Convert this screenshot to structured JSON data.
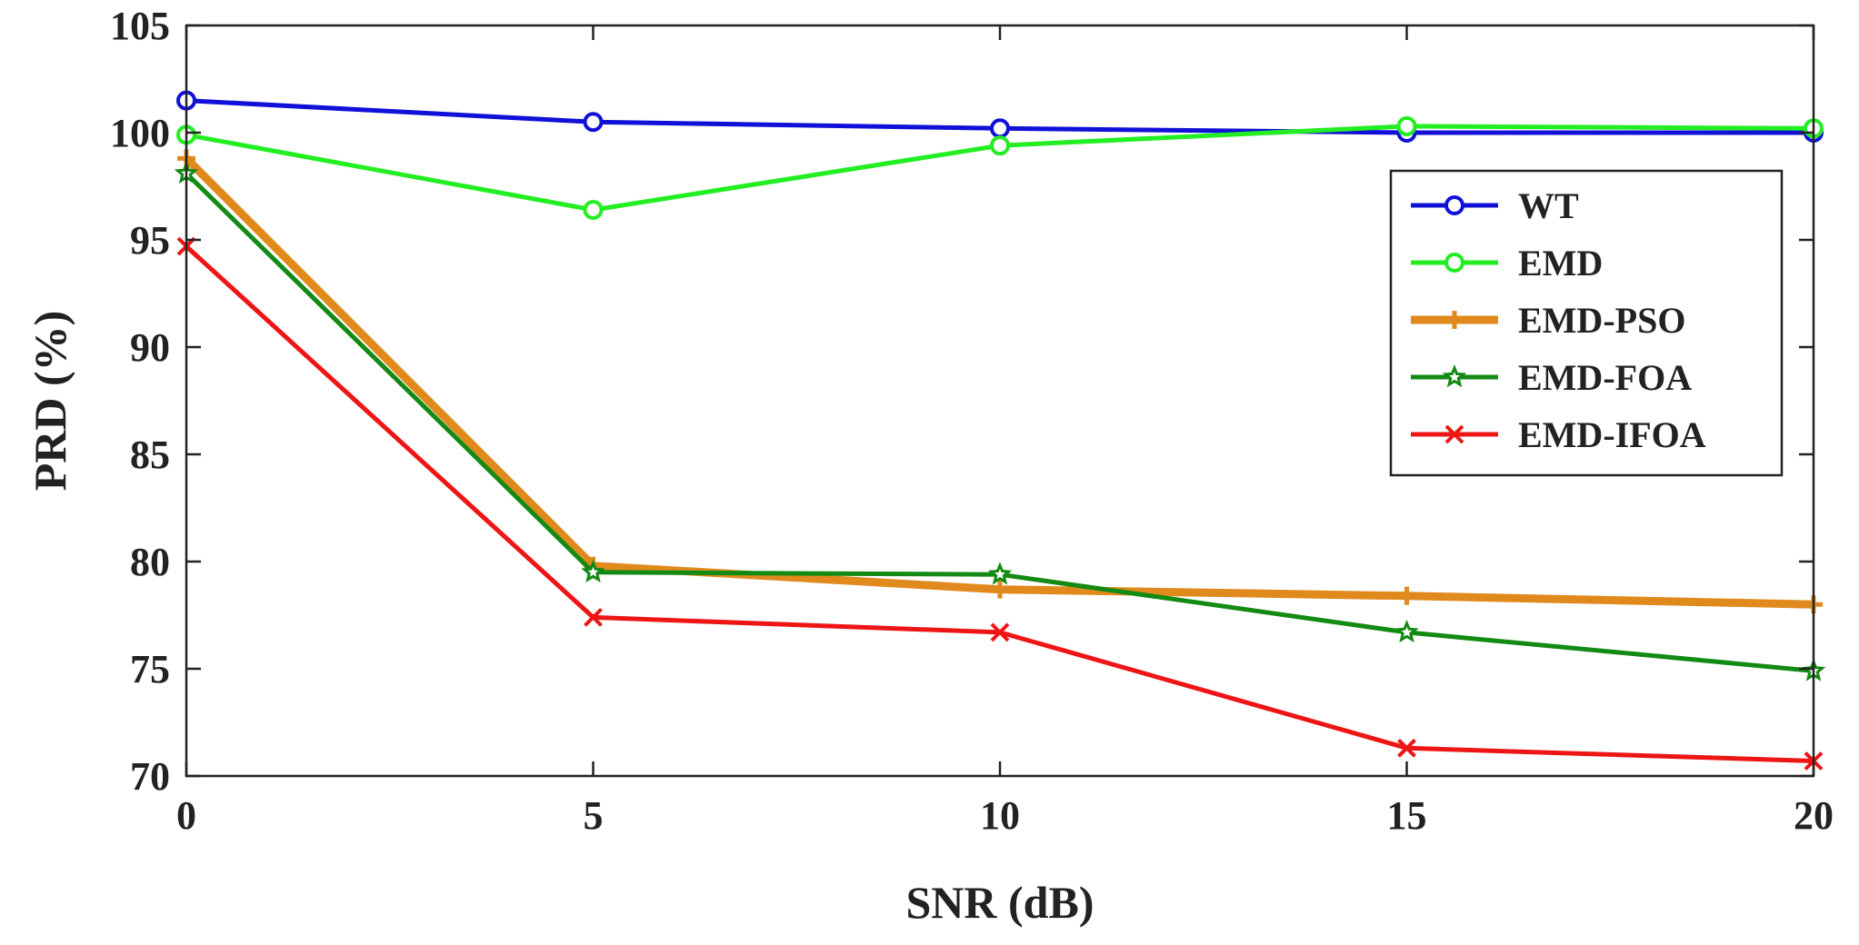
{
  "chart_data": {
    "type": "line",
    "xlabel": "SNR (dB)",
    "ylabel": "PRD (%)",
    "x": [
      0,
      5,
      10,
      15,
      20
    ],
    "xlim": [
      0,
      20
    ],
    "ylim": [
      70,
      105
    ],
    "xticks": [
      0,
      5,
      10,
      15,
      20
    ],
    "yticks": [
      70,
      75,
      80,
      85,
      90,
      95,
      100,
      105
    ],
    "grid": false,
    "legend_position": "top-right",
    "series": [
      {
        "name": "WT",
        "color": "#1010d8",
        "marker": "circle",
        "values": [
          101.5,
          100.5,
          100.2,
          100.0,
          100.0
        ]
      },
      {
        "name": "EMD",
        "color": "#22ee22",
        "marker": "circle",
        "values": [
          99.9,
          96.4,
          99.4,
          100.3,
          100.2
        ]
      },
      {
        "name": "EMD-PSO",
        "color": "#e08a1e",
        "marker": "plus",
        "values": [
          98.8,
          79.8,
          78.7,
          78.4,
          78.0
        ]
      },
      {
        "name": "EMD-FOA",
        "color": "#138a13",
        "marker": "star",
        "values": [
          98.1,
          79.5,
          79.4,
          76.7,
          74.9
        ]
      },
      {
        "name": "EMD-IFOA",
        "color": "#ee1515",
        "marker": "x",
        "values": [
          94.7,
          77.4,
          76.7,
          71.3,
          70.7
        ]
      }
    ]
  }
}
